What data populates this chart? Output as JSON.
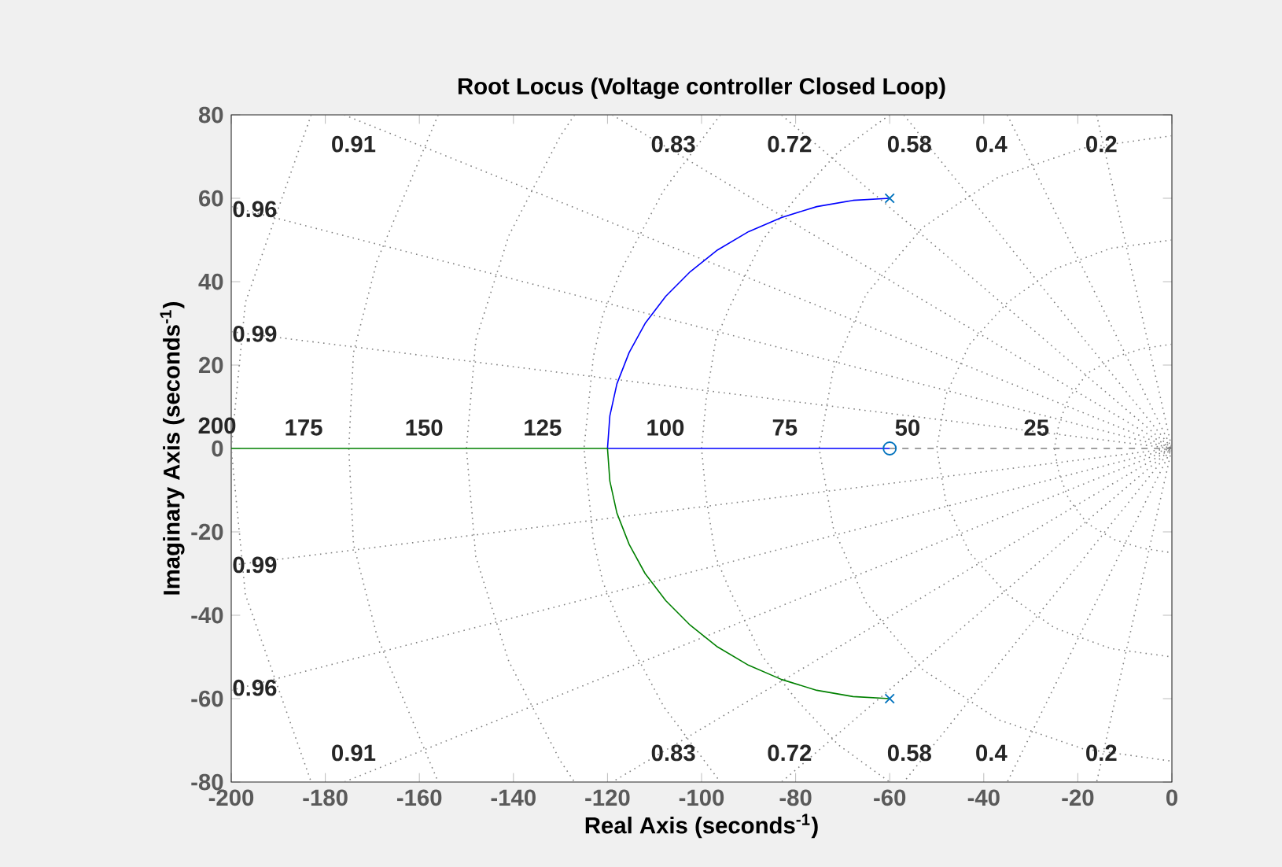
{
  "chart_data": {
    "type": "line",
    "title": "Root Locus (Voltage controller Closed Loop)",
    "xlabel": "Real Axis (seconds$^{-1}$)",
    "ylabel": "Imaginary Axis (seconds$^{-1}$)",
    "xlim": [
      -200,
      0
    ],
    "ylim": [
      -80,
      80
    ],
    "xticks": [
      -200,
      -180,
      -160,
      -140,
      -120,
      -100,
      -80,
      -60,
      -40,
      -20,
      0
    ],
    "yticks": [
      -80,
      -60,
      -40,
      -20,
      0,
      20,
      40,
      60,
      80
    ],
    "grid": false,
    "series": [
      {
        "color": "#808080",
        "line_style": "dashed",
        "marker": "none",
        "x": [
          -60,
          0
        ],
        "values": [
          0,
          0
        ]
      },
      {
        "color": "#808080",
        "line_style": "dotted",
        "marker": "none",
        "x": [
          -16,
          0,
          -16
        ],
        "values": [
          80,
          0,
          -80
        ]
      },
      {
        "color": "#808080",
        "line_style": "dotted",
        "marker": "none",
        "x": [
          -35,
          0,
          -35
        ],
        "values": [
          80,
          0,
          -80
        ]
      },
      {
        "color": "#808080",
        "line_style": "dotted",
        "marker": "none",
        "x": [
          -57,
          0,
          -57
        ],
        "values": [
          80,
          0,
          -80
        ]
      },
      {
        "color": "#808080",
        "line_style": "dotted",
        "marker": "none",
        "x": [
          -83,
          0,
          -83
        ],
        "values": [
          80,
          0,
          -80
        ]
      },
      {
        "color": "#808080",
        "line_style": "dotted",
        "marker": "none",
        "x": [
          -119,
          0,
          -119
        ],
        "values": [
          80,
          0,
          -80
        ]
      },
      {
        "color": "#808080",
        "line_style": "dotted",
        "marker": "none",
        "x": [
          -176,
          0,
          -176
        ],
        "values": [
          80,
          0,
          -80
        ]
      },
      {
        "color": "#808080",
        "line_style": "dotted",
        "marker": "none",
        "x": [
          -200,
          0,
          -200
        ],
        "values": [
          58,
          0,
          -58
        ]
      },
      {
        "color": "#808080",
        "line_style": "dotted",
        "marker": "none",
        "x": [
          -200,
          0,
          -200
        ],
        "values": [
          28,
          0,
          -28
        ]
      },
      {
        "color": "#808080",
        "line_style": "dotted",
        "marker": "none",
        "x": [
          0,
          -6,
          -12,
          -18,
          -22,
          -24,
          -25,
          -24,
          -22,
          -18,
          -12,
          -6,
          0
        ],
        "values": [
          25,
          24,
          22,
          18,
          12,
          6,
          0,
          -6,
          -12,
          -18,
          -22,
          -24,
          -25
        ]
      },
      {
        "color": "#808080",
        "line_style": "dotted",
        "marker": "none",
        "x": [
          0,
          -13,
          -25,
          -35,
          -43,
          -48,
          -50,
          -48,
          -43,
          -35,
          -25,
          -13,
          0
        ],
        "values": [
          50,
          48,
          43,
          35,
          25,
          13,
          0,
          -13,
          -25,
          -35,
          -43,
          -48,
          -50
        ]
      },
      {
        "color": "#808080",
        "line_style": "dotted",
        "marker": "none",
        "x": [
          0,
          -19,
          -37,
          -53,
          -65,
          -72,
          -75,
          -72,
          -65,
          -53,
          -37,
          -19,
          0
        ],
        "values": [
          75,
          72,
          65,
          53,
          37,
          19,
          0,
          -19,
          -37,
          -53,
          -65,
          -72,
          -75
        ]
      },
      {
        "color": "#808080",
        "line_style": "dotted",
        "marker": "none",
        "x": [
          -60,
          -71,
          -80,
          -87,
          -94,
          -97,
          -99,
          -100,
          -99,
          -97,
          -94,
          -87,
          -80,
          -71,
          -60
        ],
        "values": [
          80,
          71,
          60,
          50,
          34,
          26,
          12,
          0,
          -12,
          -26,
          -34,
          -50,
          -60,
          -71,
          -80
        ]
      },
      {
        "color": "#808080",
        "line_style": "dotted",
        "marker": "none",
        "x": [
          -96,
          -108,
          -117,
          -121,
          -123,
          -125,
          -123,
          -121,
          -117,
          -108,
          -96
        ],
        "values": [
          80,
          62,
          43,
          32,
          22,
          0,
          -22,
          -32,
          -43,
          -62,
          -80
        ]
      },
      {
        "color": "#808080",
        "line_style": "dotted",
        "marker": "none",
        "x": [
          -127,
          -130,
          -141,
          -148,
          -150,
          -148,
          -141,
          -130,
          -127
        ],
        "values": [
          80,
          75,
          51,
          26,
          0,
          -26,
          -51,
          -75,
          -80
        ]
      },
      {
        "color": "#808080",
        "line_style": "dotted",
        "marker": "none",
        "x": [
          -156,
          -169,
          -174,
          -175,
          -174,
          -169,
          -156
        ],
        "values": [
          80,
          45,
          23,
          0,
          -23,
          -45,
          -80
        ]
      },
      {
        "color": "#808080",
        "line_style": "dotted",
        "marker": "none",
        "x": [
          -183,
          -197,
          -200,
          -197,
          -183
        ],
        "values": [
          80,
          35,
          0,
          -35,
          -80
        ]
      },
      {
        "color": "#0000ff",
        "line_style": "solid",
        "marker": "none",
        "x": [
          -60,
          -67.8,
          -75.5,
          -83,
          -90,
          -96.6,
          -102.4,
          -107.6,
          -112,
          -115.4,
          -118,
          -119.5,
          -120,
          -60
        ],
        "values": [
          60,
          59.5,
          58,
          55.4,
          52,
          47.6,
          42.4,
          36.5,
          30,
          23,
          15.5,
          7.8,
          0,
          0
        ]
      },
      {
        "color": "#008000",
        "line_style": "solid",
        "marker": "none",
        "x": [
          -60,
          -67.8,
          -75.5,
          -83,
          -90,
          -96.6,
          -102.4,
          -107.6,
          -112,
          -115.4,
          -118,
          -119.5,
          -120,
          -200
        ],
        "values": [
          -60,
          -59.5,
          -58,
          -55.4,
          -52,
          -47.6,
          -42.4,
          -36.5,
          -30,
          -23,
          -15.5,
          -7.8,
          0,
          0
        ]
      },
      {
        "type": "scatter",
        "color": "#0072bd",
        "marker": "cross",
        "x": [
          -60,
          -60
        ],
        "values": [
          60,
          -60
        ]
      },
      {
        "type": "scatter",
        "color": "#0072bd",
        "marker": "circle",
        "x": [
          -60
        ],
        "values": [
          0
        ]
      }
    ],
    "annotations": [
      "0.91",
      "0.83",
      "0.72",
      "0.58",
      "0.4",
      "0.2",
      "0.96",
      "0.99",
      "0.99",
      "0.96",
      "0.91",
      "0.83",
      "0.72",
      "0.58",
      "0.4",
      "0.2",
      "200",
      "175",
      "150",
      "125",
      "100",
      "75",
      "50",
      "25"
    ]
  }
}
